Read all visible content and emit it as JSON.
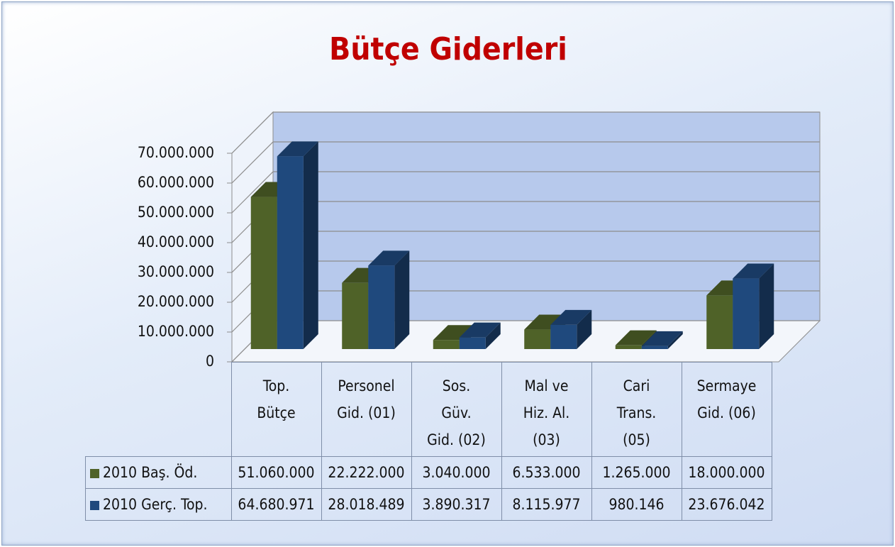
{
  "chart_data": {
    "type": "bar3d",
    "title": "Bütçe Giderleri",
    "categories": [
      "Top. Bütçe",
      "Personel Gid. (01)",
      "Sos. Güv. Gid. (02)",
      "Mal ve Hiz. Al. (03)",
      "Cari Trans. (05)",
      "Sermaye Gid. (06)"
    ],
    "series": [
      {
        "name": "2010 Baş. Öd.",
        "color": "#4f6228",
        "values": [
          51060000,
          22222000,
          3040000,
          6533000,
          1265000,
          18000000
        ],
        "value_labels": [
          "51.060.000",
          "22.222.000",
          "3.040.000",
          "6.533.000",
          "1.265.000",
          "18.000.000"
        ]
      },
      {
        "name": "2010 Gerç. Top.",
        "color": "#1f497d",
        "values": [
          64680971,
          28018489,
          3890317,
          8115977,
          980146,
          23676042
        ],
        "value_labels": [
          "64.680.971",
          "28.018.489",
          "3.890.317",
          "8.115.977",
          "980.146",
          "23.676.042"
        ]
      }
    ],
    "ylim": [
      0,
      70000000
    ],
    "yticks": [
      0,
      {
        "value": 10000000,
        "label": "10.000.000"
      },
      {
        "value": 20000000,
        "label": "20.000.000"
      },
      {
        "value": 30000000,
        "label": "30.000.000"
      },
      {
        "value": 40000000,
        "label": "40.000.000"
      },
      {
        "value": 50000000,
        "label": "50.000.000"
      },
      {
        "value": 60000000,
        "label": "60.000.000"
      },
      {
        "value": 70000000,
        "label": "70.000.000"
      }
    ],
    "grid": true
  }
}
